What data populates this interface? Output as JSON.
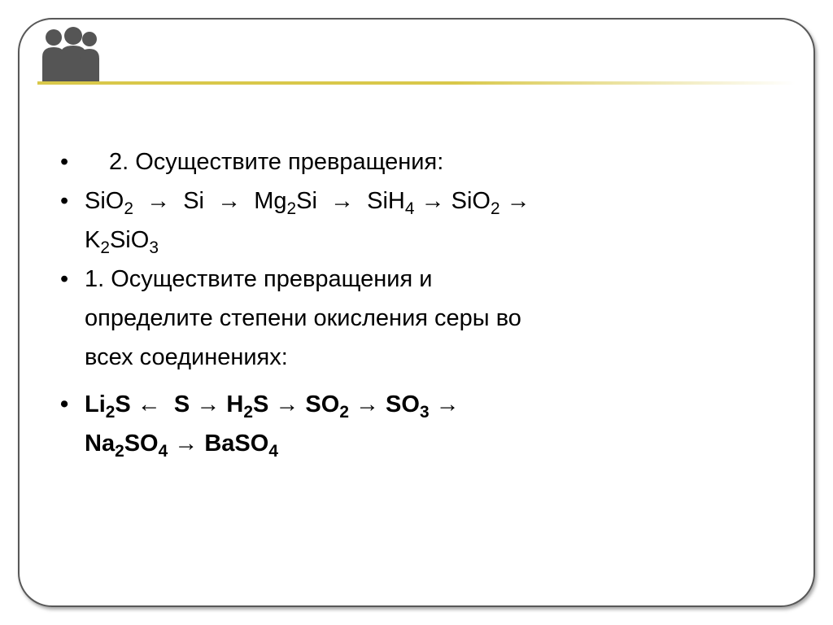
{
  "slide": {
    "colors": {
      "frame_border": "#585858",
      "divider_start": "#d9c84a",
      "divider_end": "#ffffff",
      "text": "#000000",
      "icon_fill": "#555555",
      "background": "#ffffff"
    },
    "typography": {
      "body_fontsize_pt": 22,
      "body_font_family": "Arial",
      "bold_lines": [
        6,
        7
      ]
    },
    "lines": [
      {
        "indent": 1,
        "bullet": true,
        "html": "2. Осуществите превращения:"
      },
      {
        "indent": 0,
        "bullet": true,
        "html": "SiO<sub>2</sub>&nbsp;&nbsp;→&nbsp;&nbsp;Si&nbsp;&nbsp;→&nbsp;&nbsp;Mg<sub>2</sub>Si&nbsp;&nbsp;→&nbsp;&nbsp;SiH<sub>4</sub>&nbsp;→&nbsp;SiO<sub>2</sub> →"
      },
      {
        "indent": 0,
        "bullet": false,
        "html": "K<sub>2</sub>SiO<sub>3</sub>"
      },
      {
        "indent": 0,
        "bullet": true,
        "html": "1. Осуществите превращения и"
      },
      {
        "indent": 0,
        "bullet": false,
        "html": "определите степени окисления серы во"
      },
      {
        "indent": 0,
        "bullet": false,
        "html": "всех соединениях:"
      },
      {
        "indent": 0,
        "bullet": true,
        "bold": true,
        "html": "Li<sub>2</sub>S ←&nbsp;&nbsp;S → H<sub>2</sub>S → SO<sub>2</sub> → SO<sub>3</sub> →"
      },
      {
        "indent": 0,
        "bullet": false,
        "bold": true,
        "html": "Na<sub>2</sub>SO<sub>4</sub> → BaSO<sub>4</sub>"
      }
    ]
  }
}
